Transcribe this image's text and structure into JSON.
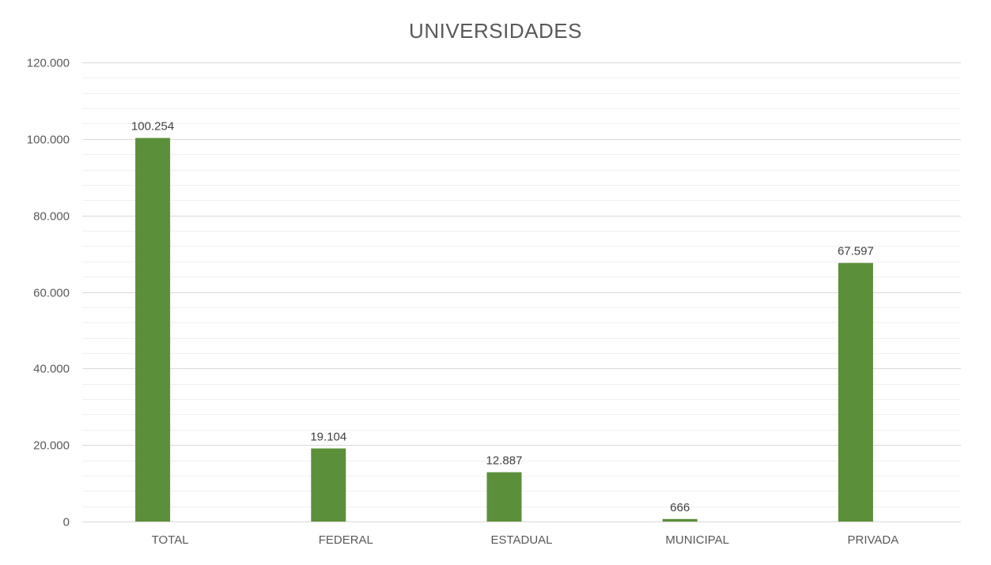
{
  "chart_data": {
    "type": "bar",
    "title": "UNIVERSIDADES",
    "categories": [
      "TOTAL",
      "FEDERAL",
      "ESTADUAL",
      "MUNICIPAL",
      "PRIVADA"
    ],
    "values": [
      100254,
      19104,
      12887,
      666,
      67597
    ],
    "value_labels": [
      "100.254",
      "19.104",
      "12.887",
      "666",
      "67.597"
    ],
    "xlabel": "",
    "ylabel": "",
    "ylim": [
      0,
      120000
    ],
    "y_ticks": [
      0,
      20000,
      40000,
      60000,
      80000,
      100000,
      120000
    ],
    "y_tick_labels": [
      "0",
      "20.000",
      "40.000",
      "60.000",
      "80.000",
      "100.000",
      "120.000"
    ],
    "grid": true,
    "legend": "none",
    "colors": {
      "bar": "#5b8f3a",
      "major_grid": "#d9d9d9",
      "minor_grid": "#f0f0f0",
      "axis": "#d9d9d9"
    }
  }
}
